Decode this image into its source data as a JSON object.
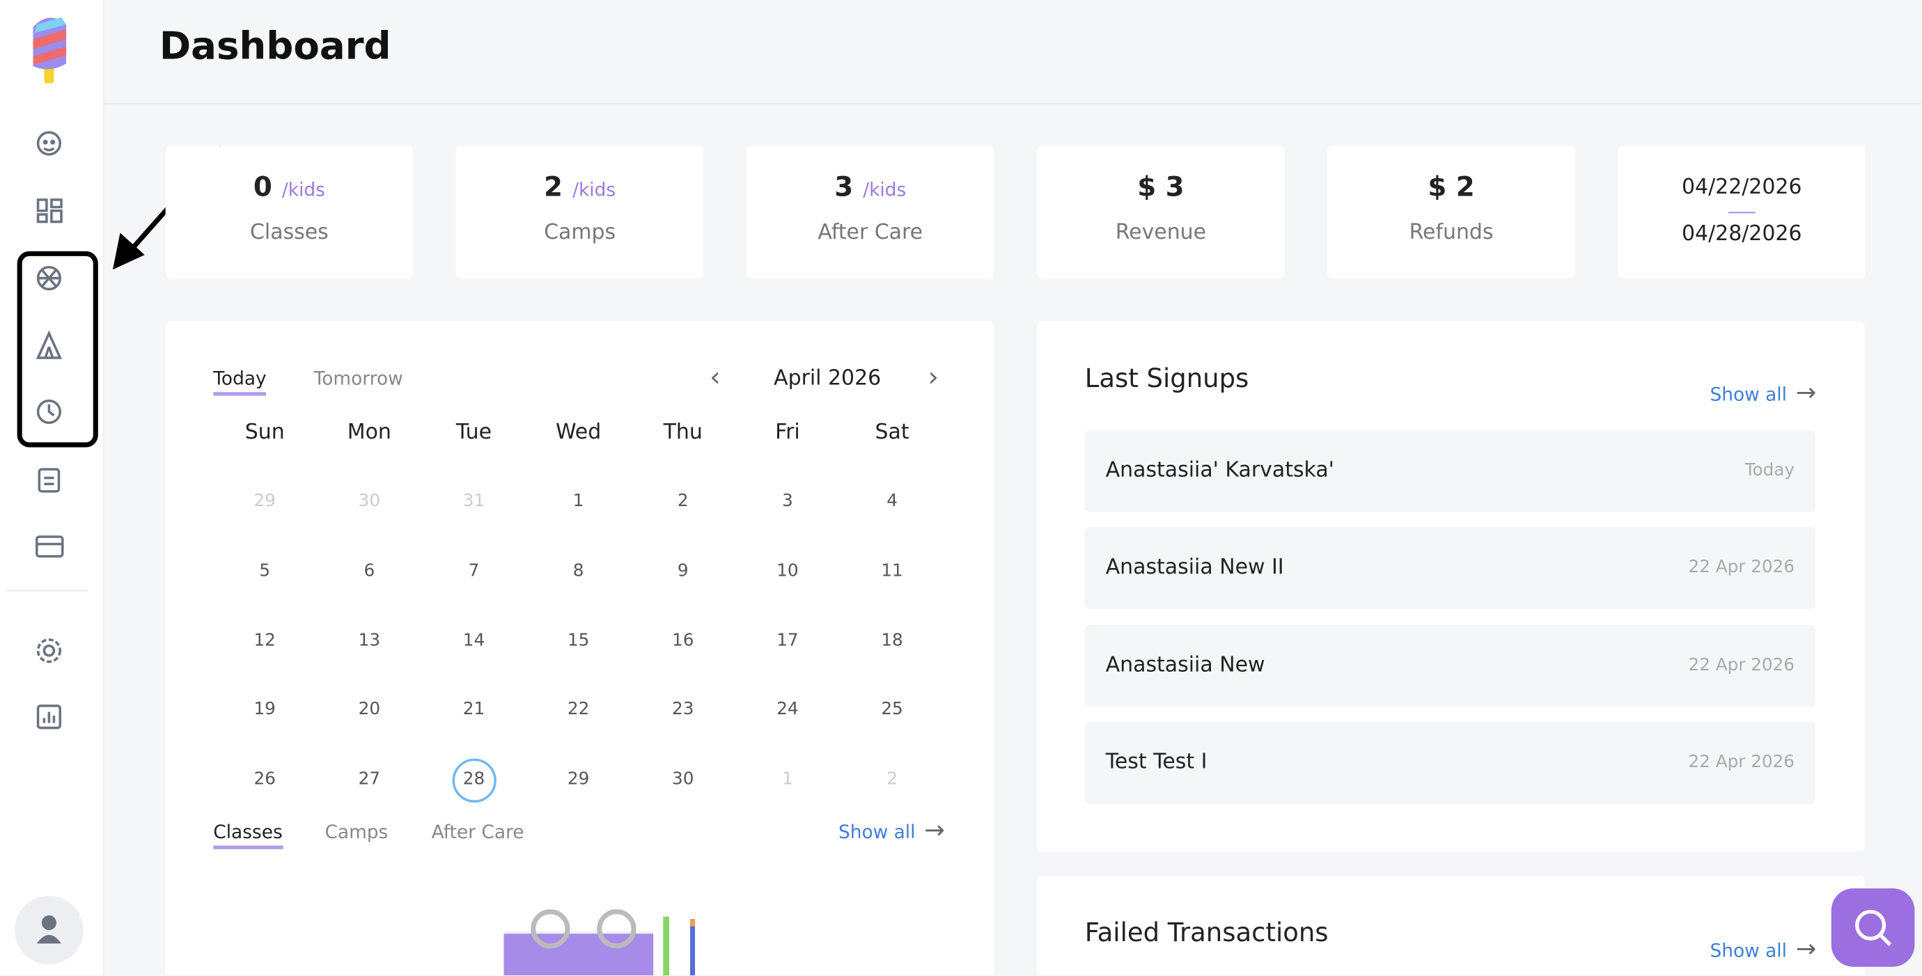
{
  "header": {
    "title": "Dashboard"
  },
  "stats": [
    {
      "value": "0",
      "unit": "/kids",
      "label": "Classes"
    },
    {
      "value": "2",
      "unit": "/kids",
      "label": "Camps"
    },
    {
      "value": "3",
      "unit": "/kids",
      "label": "After Care"
    },
    {
      "value": "$ 3",
      "label": "Revenue"
    },
    {
      "value": "$ 2",
      "label": "Refunds"
    }
  ],
  "date_range": {
    "from": "04/22/2026",
    "to": "04/28/2026"
  },
  "calendar": {
    "tabs": [
      "Today",
      "Tomorrow"
    ],
    "month": "April 2026",
    "weekdays": [
      "Sun",
      "Mon",
      "Tue",
      "Wed",
      "Thu",
      "Fri",
      "Sat"
    ],
    "weeks": [
      [
        {
          "day": 29,
          "muted": true
        },
        {
          "day": 30,
          "muted": true
        },
        {
          "day": 31,
          "muted": true
        },
        {
          "day": 1
        },
        {
          "day": 2
        },
        {
          "day": 3
        },
        {
          "day": 4
        }
      ],
      [
        {
          "day": 5
        },
        {
          "day": 6
        },
        {
          "day": 7
        },
        {
          "day": 8
        },
        {
          "day": 9
        },
        {
          "day": 10
        },
        {
          "day": 11
        }
      ],
      [
        {
          "day": 12
        },
        {
          "day": 13
        },
        {
          "day": 14
        },
        {
          "day": 15
        },
        {
          "day": 16
        },
        {
          "day": 17
        },
        {
          "day": 18
        }
      ],
      [
        {
          "day": 19
        },
        {
          "day": 20
        },
        {
          "day": 21
        },
        {
          "day": 22
        },
        {
          "day": 23
        },
        {
          "day": 24
        },
        {
          "day": 25
        }
      ],
      [
        {
          "day": 26
        },
        {
          "day": 27
        },
        {
          "day": 28,
          "selected": true
        },
        {
          "day": 29
        },
        {
          "day": 30
        },
        {
          "day": 1,
          "muted": true
        },
        {
          "day": 2,
          "muted": true
        }
      ]
    ],
    "bottom_tabs": [
      "Classes",
      "Camps",
      "After Care"
    ],
    "show_all": "Show all"
  },
  "last_signups": {
    "title": "Last Signups",
    "show_all": "Show all",
    "rows": [
      {
        "name": "Anastasiia' Karvatska'",
        "date": "Today"
      },
      {
        "name": "Anastasiia New II",
        "date": "22 Apr 2026"
      },
      {
        "name": "Anastasiia New",
        "date": "22 Apr 2026"
      },
      {
        "name": "Test Test I",
        "date": "22 Apr 2026"
      }
    ]
  },
  "failed_transactions": {
    "title": "Failed Transactions",
    "show_all": "Show all"
  }
}
